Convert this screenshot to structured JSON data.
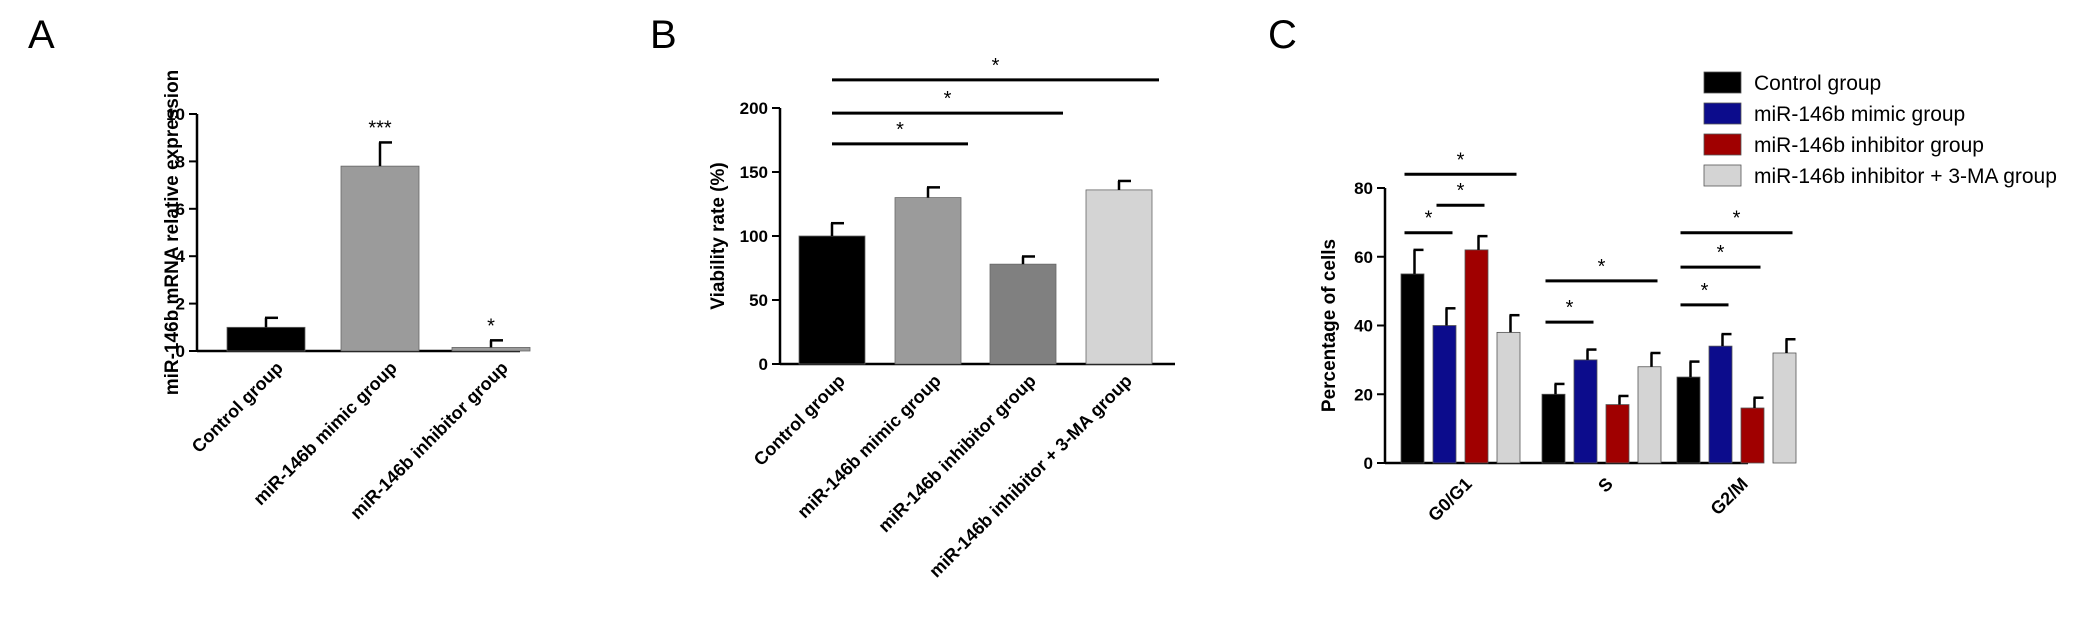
{
  "colors": {
    "black": "#000000",
    "gray_mid": "#9b9b9b",
    "gray_dark": "#808080",
    "gray_light": "#d4d4d4",
    "navy": "#0c0c8c",
    "dark_red": "#a00000"
  },
  "chart_data": [
    {
      "panel": "A",
      "type": "bar",
      "ylabel": "miR-146b mRNA relative expression",
      "ylim": [
        0,
        10
      ],
      "yticks": [
        0,
        2,
        4,
        6,
        8,
        10
      ],
      "categories": [
        "Control group",
        "miR-146b mimic group",
        "miR-146b inhibitor group"
      ],
      "values": [
        1.0,
        7.8,
        0.15
      ],
      "errors": [
        0.4,
        1.0,
        0.3
      ],
      "bar_colors": [
        "black",
        "gray_mid",
        "gray_mid"
      ],
      "significance": [
        "",
        "***",
        "*"
      ]
    },
    {
      "panel": "B",
      "type": "bar",
      "ylabel": "Viability rate (%)",
      "ylim": [
        0,
        200
      ],
      "yticks": [
        0,
        50,
        100,
        150,
        200
      ],
      "categories": [
        "Control group",
        "miR-146b mimic group",
        "miR-146b inhibitor group",
        "miR-146b inhibitor + 3-MA group"
      ],
      "values": [
        100,
        130,
        78,
        136
      ],
      "errors": [
        10,
        8,
        6,
        7
      ],
      "bar_colors": [
        "black",
        "gray_mid",
        "gray_dark",
        "gray_light"
      ],
      "brackets": [
        {
          "from": 0,
          "to": 1,
          "label": "*",
          "y": 172
        },
        {
          "from": 0,
          "to": 2,
          "label": "*",
          "y": 196
        },
        {
          "from": 0,
          "to": 3,
          "label": "*",
          "y": 222
        }
      ]
    },
    {
      "panel": "C",
      "type": "bar",
      "ylabel": "Percentage of cells",
      "ylim": [
        0,
        80
      ],
      "yticks": [
        0,
        20,
        40,
        60,
        80
      ],
      "categories": [
        "G0/G1",
        "S",
        "G2/M"
      ],
      "series": [
        {
          "name": "Control group",
          "color": "black",
          "values": [
            55,
            20,
            25
          ],
          "errors": [
            7,
            3,
            4.5
          ]
        },
        {
          "name": "miR-146b mimic group",
          "color": "navy",
          "values": [
            40,
            30,
            34
          ],
          "errors": [
            5,
            3,
            3.5
          ]
        },
        {
          "name": "miR-146b inhibitor group",
          "color": "dark_red",
          "values": [
            62,
            17,
            16
          ],
          "errors": [
            4,
            2.5,
            3
          ]
        },
        {
          "name": "miR-146b inhibitor + 3-MA group",
          "color": "gray_light",
          "values": [
            38,
            28,
            32
          ],
          "errors": [
            5,
            4,
            4
          ]
        }
      ],
      "brackets": [
        {
          "group": 0,
          "from": 0,
          "to": 1,
          "label": "*",
          "y": 67
        },
        {
          "group": 0,
          "from": 1,
          "to": 2,
          "label": "*",
          "y": 75
        },
        {
          "group": 0,
          "from": 0,
          "to": 3,
          "label": "*",
          "y": 84
        },
        {
          "group": 1,
          "from": 0,
          "to": 1,
          "label": "*",
          "y": 41
        },
        {
          "group": 1,
          "from": 0,
          "to": 3,
          "label": "*",
          "y": 53
        },
        {
          "group": 2,
          "from": 0,
          "to": 1,
          "label": "*",
          "y": 46
        },
        {
          "group": 2,
          "from": 0,
          "to": 2,
          "label": "*",
          "y": 57
        },
        {
          "group": 2,
          "from": 0,
          "to": 3,
          "label": "*",
          "y": 67
        }
      ]
    }
  ]
}
